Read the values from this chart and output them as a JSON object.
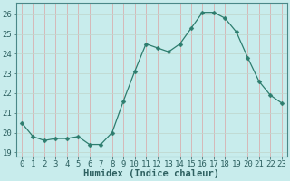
{
  "x": [
    0,
    1,
    2,
    3,
    4,
    5,
    6,
    7,
    8,
    9,
    10,
    11,
    12,
    13,
    14,
    15,
    16,
    17,
    18,
    19,
    20,
    21,
    22,
    23
  ],
  "y": [
    20.5,
    19.8,
    19.6,
    19.7,
    19.7,
    19.8,
    19.4,
    19.4,
    20.0,
    21.6,
    23.1,
    24.5,
    24.3,
    24.1,
    24.5,
    25.3,
    26.1,
    26.1,
    25.8,
    25.1,
    23.8,
    22.6,
    21.9,
    21.5
  ],
  "line_color": "#2d7d6e",
  "marker": "D",
  "marker_size": 2.5,
  "bg_color": "#c8ecec",
  "grid_color_h": "#c0d8d0",
  "grid_color_v": "#d8b0b0",
  "xlabel": "Humidex (Indice chaleur)",
  "xlim": [
    -0.5,
    23.5
  ],
  "ylim": [
    18.8,
    26.6
  ],
  "yticks": [
    19,
    20,
    21,
    22,
    23,
    24,
    25,
    26
  ],
  "xticks": [
    0,
    1,
    2,
    3,
    4,
    5,
    6,
    7,
    8,
    9,
    10,
    11,
    12,
    13,
    14,
    15,
    16,
    17,
    18,
    19,
    20,
    21,
    22,
    23
  ],
  "tick_color": "#2d6060",
  "label_fontsize": 6.5,
  "xlabel_fontsize": 7.5,
  "axis_color": "#4a8888"
}
